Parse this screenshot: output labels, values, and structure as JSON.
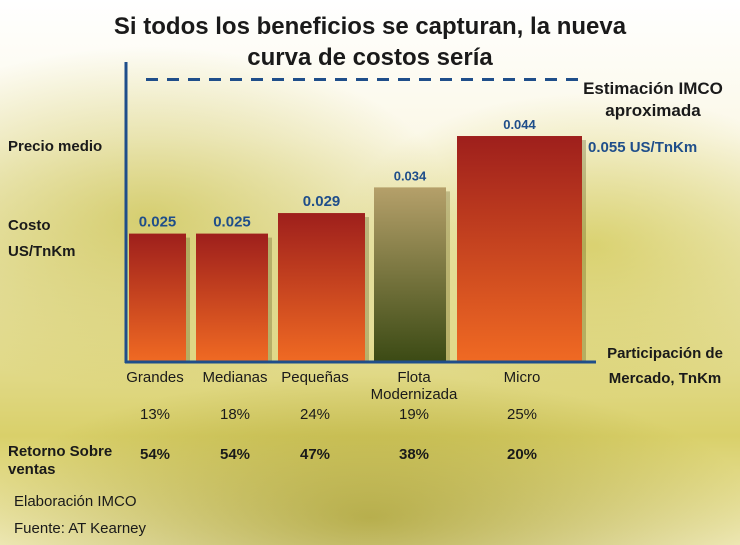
{
  "title_line1": "Si todos los beneficios se capturan, la nueva",
  "title_line2": "curva de costos sería",
  "estimacion_line1": "Estimación IMCO",
  "estimacion_line2": "aproximada",
  "precio_medio_label": "Precio medio",
  "precio_medio_value": "0.055 US/TnKm",
  "y_label_line1": "Costo",
  "y_label_line2": "US/TnKm",
  "x_label_line1": "Participación de",
  "x_label_line2": "Mercado, TnKm",
  "retorno_label_line1": "Retorno Sobre",
  "retorno_label_line2": "ventas",
  "source_line1": "Elaboración IMCO",
  "source_line2": "Fuente: AT Kearney",
  "colors": {
    "axis": "#1f4e8a",
    "bar_top": "#9e1f1c",
    "bar_bottom": "#f06a23",
    "bar_alt_top": "#b5a06a",
    "bar_alt_bottom": "#3b4a14"
  },
  "chart_data": {
    "type": "bar",
    "title": "Si todos los beneficios se capturan, la nueva curva de costos sería",
    "xlabel": "Participación de Mercado, TnKm",
    "ylabel": "Costo US/TnKm",
    "ylim": [
      0,
      0.06
    ],
    "reference_line": {
      "label": "Precio medio",
      "value": 0.055,
      "display": "0.055 US/TnKm"
    },
    "categories": [
      "Grandes",
      "Medianas",
      "Pequeñas",
      "Flota Modernizada",
      "Micro"
    ],
    "category_lines": [
      [
        "Grandes"
      ],
      [
        "Medianas"
      ],
      [
        "Pequeñas"
      ],
      [
        "Flota",
        "Modernizada"
      ],
      [
        "Micro"
      ]
    ],
    "values": [
      0.025,
      0.025,
      0.029,
      0.034,
      0.044
    ],
    "value_labels": [
      "0.025",
      "0.025",
      "0.029",
      "0.034",
      "0.044"
    ],
    "market_share": [
      13,
      18,
      24,
      19,
      25
    ],
    "market_share_labels": [
      "13%",
      "18%",
      "24%",
      "19%",
      "25%"
    ],
    "return_on_sales_labels": [
      "54%",
      "54%",
      "47%",
      "38%",
      "20%"
    ],
    "highlight_index": 3
  }
}
